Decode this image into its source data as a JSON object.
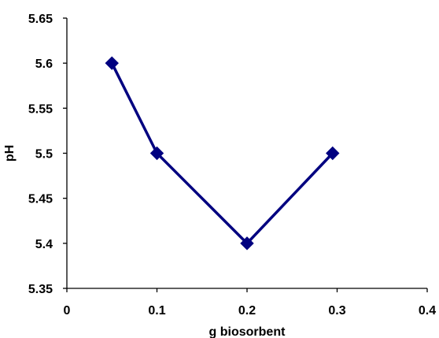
{
  "chart_data": {
    "type": "line",
    "xlabel": "g biosorbent",
    "ylabel": "pH",
    "xlim": [
      0,
      0.4
    ],
    "ylim": [
      5.35,
      5.65
    ],
    "x_ticks": [
      "0",
      "0.1",
      "0.2",
      "0.3",
      "0.4"
    ],
    "y_ticks": [
      "5.35",
      "5.4",
      "5.45",
      "5.5",
      "5.55",
      "5.6",
      "5.65"
    ],
    "grid": false,
    "legend": "none",
    "series": [
      {
        "color": "#000080",
        "marker": "diamond",
        "points": [
          {
            "x": 0.05,
            "y": 5.6
          },
          {
            "x": 0.1,
            "y": 5.5
          },
          {
            "x": 0.2,
            "y": 5.4
          },
          {
            "x": 0.295,
            "y": 5.5
          }
        ]
      }
    ]
  }
}
